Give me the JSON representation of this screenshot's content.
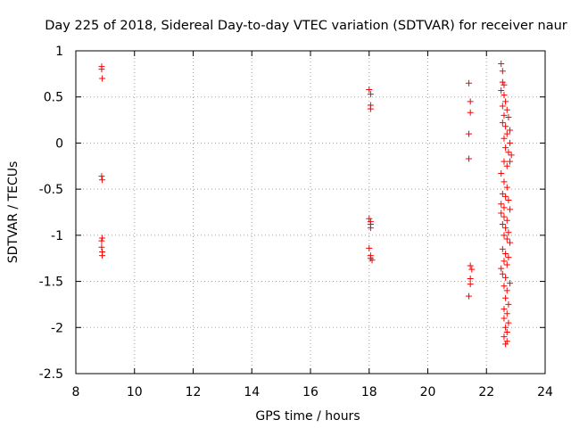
{
  "chart_data": {
    "type": "scatter",
    "title": "Day 225 of 2018, Sidereal Day-to-day VTEC variation (SDTVAR) for receiver naur",
    "xlabel": "GPS time / hours",
    "ylabel": "SDTVAR / TECUs",
    "xlim": [
      8,
      24
    ],
    "ylim": [
      -2.5,
      1
    ],
    "x_ticks": [
      8,
      10,
      12,
      14,
      16,
      18,
      20,
      22,
      24
    ],
    "x_tick_labels": [
      "8",
      "10",
      "12",
      "14",
      "16",
      "18",
      "20",
      "22",
      "24"
    ],
    "y_ticks": [
      1,
      0.5,
      0,
      -0.5,
      -1,
      -1.5,
      -2,
      -2.5
    ],
    "y_tick_labels": [
      "1",
      "0.5",
      "0",
      "-0.5",
      "-1",
      "-1.5",
      "-2",
      "-2.5"
    ],
    "grid": true,
    "marker": "+",
    "color": "#ff0000",
    "series": [
      {
        "name": "SDTVAR",
        "points": [
          [
            8.88,
            0.83
          ],
          [
            8.88,
            0.8
          ],
          [
            8.9,
            0.7
          ],
          [
            8.88,
            -0.36
          ],
          [
            8.9,
            -0.4
          ],
          [
            8.9,
            -1.03
          ],
          [
            8.88,
            -1.06
          ],
          [
            8.88,
            -1.13
          ],
          [
            8.9,
            -1.18
          ],
          [
            8.9,
            -1.22
          ],
          [
            18.0,
            0.58
          ],
          [
            18.05,
            0.53
          ],
          [
            18.05,
            0.41
          ],
          [
            18.05,
            0.37
          ],
          [
            18.0,
            -0.82
          ],
          [
            18.05,
            -0.85
          ],
          [
            18.05,
            -0.88
          ],
          [
            18.05,
            -0.92
          ],
          [
            18.0,
            -1.14
          ],
          [
            18.05,
            -1.22
          ],
          [
            18.05,
            -1.25
          ],
          [
            18.1,
            -1.27
          ],
          [
            21.4,
            0.65
          ],
          [
            21.45,
            0.45
          ],
          [
            21.45,
            0.33
          ],
          [
            21.4,
            0.1
          ],
          [
            21.4,
            -0.17
          ],
          [
            21.45,
            -1.33
          ],
          [
            21.5,
            -1.37
          ],
          [
            21.45,
            -1.47
          ],
          [
            21.45,
            -1.53
          ],
          [
            21.4,
            -1.66
          ],
          [
            22.5,
            0.86
          ],
          [
            22.55,
            0.78
          ],
          [
            22.55,
            0.66
          ],
          [
            22.6,
            0.63
          ],
          [
            22.5,
            0.57
          ],
          [
            22.6,
            0.52
          ],
          [
            22.65,
            0.45
          ],
          [
            22.55,
            0.4
          ],
          [
            22.7,
            0.36
          ],
          [
            22.6,
            0.3
          ],
          [
            22.75,
            0.28
          ],
          [
            22.55,
            0.22
          ],
          [
            22.65,
            0.18
          ],
          [
            22.8,
            0.14
          ],
          [
            22.7,
            0.1
          ],
          [
            22.6,
            0.05
          ],
          [
            22.8,
            0.0
          ],
          [
            22.65,
            -0.05
          ],
          [
            22.75,
            -0.1
          ],
          [
            22.85,
            -0.13
          ],
          [
            22.6,
            -0.2
          ],
          [
            22.7,
            -0.25
          ],
          [
            22.8,
            -0.2
          ],
          [
            22.5,
            -0.33
          ],
          [
            22.6,
            -0.42
          ],
          [
            22.7,
            -0.48
          ],
          [
            22.55,
            -0.55
          ],
          [
            22.65,
            -0.58
          ],
          [
            22.75,
            -0.62
          ],
          [
            22.5,
            -0.66
          ],
          [
            22.6,
            -0.7
          ],
          [
            22.8,
            -0.72
          ],
          [
            22.5,
            -0.76
          ],
          [
            22.6,
            -0.8
          ],
          [
            22.7,
            -0.84
          ],
          [
            22.55,
            -0.88
          ],
          [
            22.65,
            -0.92
          ],
          [
            22.75,
            -0.97
          ],
          [
            22.6,
            -1.0
          ],
          [
            22.7,
            -1.04
          ],
          [
            22.8,
            -1.08
          ],
          [
            22.55,
            -1.15
          ],
          [
            22.65,
            -1.2
          ],
          [
            22.75,
            -1.24
          ],
          [
            22.6,
            -1.28
          ],
          [
            22.7,
            -1.32
          ],
          [
            22.5,
            -1.36
          ],
          [
            22.55,
            -1.42
          ],
          [
            22.65,
            -1.46
          ],
          [
            22.8,
            -1.52
          ],
          [
            22.6,
            -1.55
          ],
          [
            22.7,
            -1.6
          ],
          [
            22.65,
            -1.68
          ],
          [
            22.75,
            -1.75
          ],
          [
            22.6,
            -1.8
          ],
          [
            22.7,
            -1.85
          ],
          [
            22.6,
            -1.9
          ],
          [
            22.75,
            -1.95
          ],
          [
            22.65,
            -2.0
          ],
          [
            22.7,
            -2.05
          ],
          [
            22.6,
            -2.1
          ],
          [
            22.7,
            -2.15
          ],
          [
            22.65,
            -2.18
          ]
        ]
      }
    ]
  }
}
